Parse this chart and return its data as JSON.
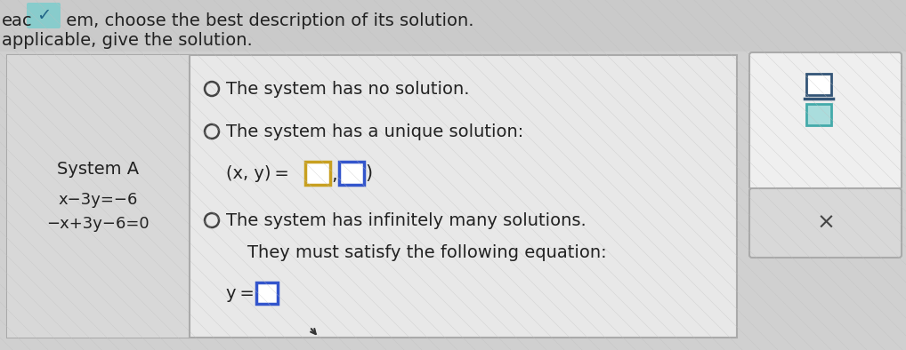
{
  "bg_color": "#d0d0d0",
  "header_bg": "#c8c8c8",
  "header_text1": "eac",
  "header_checkmark": "✓",
  "header_text2": " em, choose the best description of its solution.",
  "header_text3": "applicable, give the solution.",
  "system_label": "System A",
  "eq1": "x−3y=−6",
  "eq2": "−x+3y−6=0",
  "option1": "The system has no solution.",
  "option2": "The system has a unique solution:",
  "box1_color": "#c8a020",
  "box2_color": "#3355cc",
  "option3": "The system has infinitely many solutions.",
  "satisfy_text": "They must satisfy the following equation:",
  "box3_color": "#3355cc",
  "far_right_top_bg": "#e8e8e8",
  "far_right_bot_bg": "#c8c8c8",
  "frac_top_color": "#336688",
  "frac_bot_color": "#44aaaa",
  "x_symbol": "×",
  "radio_color": "#444444",
  "panel_bg": "#e8e8e8",
  "left_panel_bg": "#d8d8d8",
  "panel_border": "#999999",
  "text_color": "#222222",
  "text_fontsize": 14,
  "eq_fontsize": 13
}
